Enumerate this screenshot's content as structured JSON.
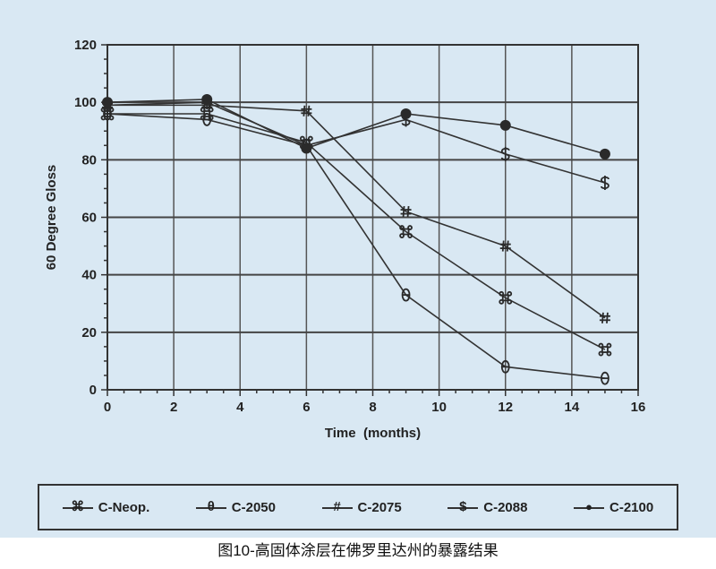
{
  "chart_data": {
    "type": "line",
    "xlabel": "Time  (months)",
    "ylabel": "60 Degree Gloss",
    "xlim": [
      0,
      16
    ],
    "ylim": [
      0,
      120
    ],
    "xticks": [
      0,
      2,
      4,
      6,
      8,
      10,
      12,
      14,
      16
    ],
    "yticks": [
      0,
      20,
      40,
      60,
      80,
      100,
      120
    ],
    "grid": true,
    "legend_position": "bottom",
    "x": [
      0,
      3,
      6,
      9,
      12,
      15
    ],
    "series": [
      {
        "name": "C-Neop.",
        "marker": "⌘",
        "values": [
          96,
          96,
          86,
          55,
          32,
          14
        ]
      },
      {
        "name": "C-2050",
        "marker": "θ",
        "values": [
          96,
          94,
          85,
          33,
          8,
          4
        ]
      },
      {
        "name": "C-2075",
        "marker": "#",
        "values": [
          99,
          99,
          97,
          62,
          50,
          25
        ]
      },
      {
        "name": "C-2088",
        "marker": "$",
        "values": [
          99,
          100,
          85,
          94,
          82,
          72
        ]
      },
      {
        "name": "C-2100",
        "marker": "●",
        "values": [
          100,
          101,
          84,
          96,
          92,
          82
        ]
      }
    ],
    "line_color": "#333333",
    "background_color": "#d9e8f3"
  },
  "caption": "图10-高固体涂层在佛罗里达州的暴露结果"
}
